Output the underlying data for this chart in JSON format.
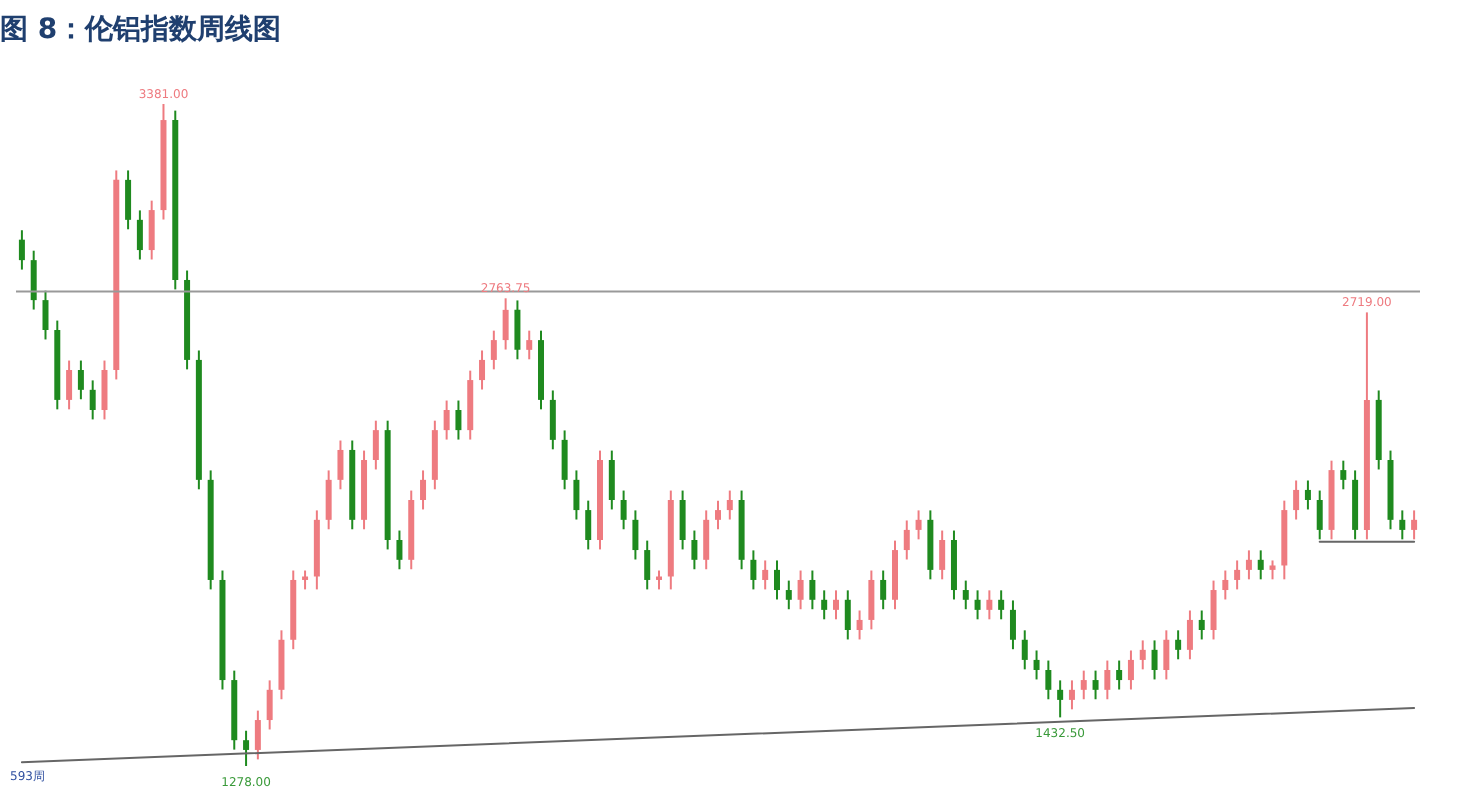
{
  "chart_data": {
    "type": "candlestick",
    "title": "图 8：伦铝指数周线图",
    "categories": [
      null,
      null,
      null,
      null,
      null,
      null,
      null,
      null,
      null,
      null,
      null,
      null,
      null,
      null,
      null,
      null,
      null,
      null,
      null,
      null,
      null,
      null,
      null,
      null,
      null,
      null,
      null,
      null,
      null,
      null,
      null,
      null,
      null,
      null,
      null,
      null,
      null,
      null,
      null,
      null,
      null,
      null,
      null,
      null,
      null,
      null,
      null,
      null,
      null,
      null,
      null,
      null,
      null,
      null,
      null,
      null,
      null,
      null,
      null,
      null,
      null,
      null,
      null,
      null,
      null,
      null,
      null,
      null,
      null,
      null,
      null,
      null,
      null,
      null,
      null,
      null,
      null,
      null,
      null,
      null,
      null,
      null,
      null,
      null,
      null,
      null,
      null,
      null,
      null,
      null,
      null,
      null,
      null,
      null,
      null,
      null,
      null,
      null,
      null,
      null,
      null,
      null,
      null,
      null,
      null,
      null,
      null,
      null,
      null,
      null,
      null,
      null,
      null,
      null,
      null,
      null,
      null,
      null,
      null
    ],
    "ohlc": [
      [
        2950,
        2980,
        2855,
        2885
      ],
      [
        2885,
        2915,
        2728,
        2758
      ],
      [
        2758,
        2788,
        2633,
        2663
      ],
      [
        2663,
        2693,
        2411,
        2441
      ],
      [
        2441,
        2566,
        2411,
        2536
      ],
      [
        2536,
        2566,
        2443,
        2473
      ],
      [
        2473,
        2503,
        2379,
        2409
      ],
      [
        2409,
        2566,
        2379,
        2536
      ],
      [
        2536,
        3170,
        2506,
        3140
      ],
      [
        3140,
        3170,
        2983,
        3013
      ],
      [
        3013,
        3043,
        2887,
        2917
      ],
      [
        2917,
        3074,
        2887,
        3044
      ],
      [
        3044,
        3381,
        3014,
        3330
      ],
      [
        3330,
        3360,
        2792,
        2822
      ],
      [
        2822,
        2852,
        2538,
        2568
      ],
      [
        2568,
        2598,
        2157,
        2187
      ],
      [
        2187,
        2217,
        1839,
        1869
      ],
      [
        1869,
        1899,
        1521,
        1551
      ],
      [
        1551,
        1581,
        1330,
        1360
      ],
      [
        1360,
        1390,
        1278,
        1329
      ],
      [
        1329,
        1454,
        1299,
        1424
      ],
      [
        1424,
        1550,
        1394,
        1520
      ],
      [
        1520,
        1709,
        1490,
        1679
      ],
      [
        1679,
        1899,
        1649,
        1869
      ],
      [
        1869,
        1899,
        1839,
        1880
      ],
      [
        1880,
        2090,
        1839,
        2060
      ],
      [
        2060,
        2217,
        2030,
        2187
      ],
      [
        2187,
        2312,
        2157,
        2282
      ],
      [
        2282,
        2312,
        2030,
        2060
      ],
      [
        2060,
        2280,
        2030,
        2250
      ],
      [
        2250,
        2375,
        2220,
        2345
      ],
      [
        2345,
        2375,
        1966,
        1996
      ],
      [
        1996,
        2026,
        1903,
        1933
      ],
      [
        1933,
        2153,
        1903,
        2123
      ],
      [
        2123,
        2217,
        2093,
        2187
      ],
      [
        2187,
        2375,
        2157,
        2345
      ],
      [
        2345,
        2439,
        2315,
        2409
      ],
      [
        2409,
        2439,
        2315,
        2345
      ],
      [
        2345,
        2534,
        2315,
        2504
      ],
      [
        2504,
        2598,
        2474,
        2568
      ],
      [
        2568,
        2661,
        2538,
        2631
      ],
      [
        2631,
        2763.75,
        2601,
        2727
      ],
      [
        2727,
        2757,
        2570,
        2600
      ],
      [
        2600,
        2661,
        2570,
        2631
      ],
      [
        2631,
        2661,
        2411,
        2441
      ],
      [
        2441,
        2471,
        2284,
        2314
      ],
      [
        2314,
        2344,
        2157,
        2187
      ],
      [
        2187,
        2217,
        2061,
        2091
      ],
      [
        2091,
        2121,
        1966,
        1996
      ],
      [
        1996,
        2280,
        1966,
        2250
      ],
      [
        2250,
        2280,
        2093,
        2123
      ],
      [
        2123,
        2153,
        2030,
        2060
      ],
      [
        2060,
        2090,
        1934,
        1964
      ],
      [
        1964,
        1994,
        1839,
        1869
      ],
      [
        1869,
        1899,
        1839,
        1880
      ],
      [
        1880,
        2153,
        1839,
        2123
      ],
      [
        2123,
        2153,
        1966,
        1996
      ],
      [
        1996,
        2026,
        1903,
        1933
      ],
      [
        1933,
        2090,
        1903,
        2060
      ],
      [
        2060,
        2121,
        2030,
        2091
      ],
      [
        2091,
        2153,
        2061,
        2123
      ],
      [
        2123,
        2153,
        1903,
        1933
      ],
      [
        1933,
        1963,
        1839,
        1869
      ],
      [
        1869,
        1931,
        1839,
        1901
      ],
      [
        1901,
        1931,
        1807,
        1837
      ],
      [
        1837,
        1867,
        1776,
        1806
      ],
      [
        1806,
        1899,
        1776,
        1869
      ],
      [
        1869,
        1899,
        1776,
        1806
      ],
      [
        1806,
        1836,
        1744,
        1774
      ],
      [
        1774,
        1836,
        1744,
        1806
      ],
      [
        1806,
        1836,
        1680,
        1710
      ],
      [
        1710,
        1772,
        1680,
        1742
      ],
      [
        1742,
        1899,
        1712,
        1869
      ],
      [
        1869,
        1899,
        1776,
        1806
      ],
      [
        1806,
        1994,
        1776,
        1964
      ],
      [
        1964,
        2058,
        1934,
        2028
      ],
      [
        2028,
        2090,
        1998,
        2060
      ],
      [
        2060,
        2090,
        1871,
        1901
      ],
      [
        1901,
        2026,
        1871,
        1996
      ],
      [
        1996,
        2026,
        1807,
        1837
      ],
      [
        1837,
        1867,
        1776,
        1806
      ],
      [
        1806,
        1836,
        1744,
        1774
      ],
      [
        1774,
        1836,
        1744,
        1806
      ],
      [
        1806,
        1836,
        1744,
        1774
      ],
      [
        1774,
        1804,
        1649,
        1679
      ],
      [
        1679,
        1709,
        1585,
        1615
      ],
      [
        1615,
        1645,
        1553,
        1583
      ],
      [
        1583,
        1613,
        1490,
        1520
      ],
      [
        1520,
        1550,
        1432.5,
        1488
      ],
      [
        1488,
        1550,
        1458,
        1520
      ],
      [
        1520,
        1581,
        1490,
        1551
      ],
      [
        1551,
        1581,
        1490,
        1520
      ],
      [
        1520,
        1613,
        1490,
        1583
      ],
      [
        1583,
        1613,
        1521,
        1551
      ],
      [
        1551,
        1645,
        1521,
        1615
      ],
      [
        1615,
        1677,
        1585,
        1647
      ],
      [
        1647,
        1677,
        1553,
        1583
      ],
      [
        1583,
        1709,
        1553,
        1679
      ],
      [
        1679,
        1709,
        1617,
        1647
      ],
      [
        1647,
        1772,
        1617,
        1742
      ],
      [
        1742,
        1772,
        1680,
        1710
      ],
      [
        1710,
        1867,
        1680,
        1837
      ],
      [
        1837,
        1899,
        1807,
        1869
      ],
      [
        1869,
        1931,
        1839,
        1901
      ],
      [
        1901,
        1963,
        1871,
        1933
      ],
      [
        1933,
        1963,
        1871,
        1901
      ],
      [
        1901,
        1931,
        1871,
        1915
      ],
      [
        1915,
        2121,
        1871,
        2091
      ],
      [
        2091,
        2185,
        2061,
        2155
      ],
      [
        2155,
        2185,
        2093,
        2123
      ],
      [
        2123,
        2153,
        1998,
        2028
      ],
      [
        2028,
        2248,
        1998,
        2218
      ],
      [
        2218,
        2248,
        2157,
        2187
      ],
      [
        2187,
        2217,
        1998,
        2028
      ],
      [
        2028,
        2719,
        1998,
        2441
      ],
      [
        2441,
        2471,
        2220,
        2250
      ],
      [
        2250,
        2280,
        2030,
        2060
      ],
      [
        2060,
        2090,
        1998,
        2028
      ],
      [
        2028,
        2090,
        1998,
        2060
      ]
    ],
    "series": [
      {
        "type": "line",
        "color": "#666666",
        "values": [
          1290,
          null,
          null,
          null,
          null,
          null,
          null,
          null,
          null,
          null,
          null,
          null,
          null,
          null,
          null,
          null,
          null,
          null,
          null,
          null,
          null,
          null,
          null,
          null,
          null,
          null,
          null,
          null,
          null,
          null,
          null,
          null,
          null,
          null,
          null,
          null,
          null,
          null,
          null,
          null,
          null,
          null,
          null,
          null,
          null,
          null,
          null,
          null,
          null,
          null,
          null,
          null,
          null,
          null,
          null,
          null,
          null,
          null,
          null,
          null,
          null,
          null,
          null,
          null,
          null,
          null,
          null,
          null,
          null,
          null,
          null,
          null,
          null,
          null,
          null,
          null,
          null,
          null,
          null,
          null,
          null,
          null,
          null,
          null,
          null,
          null,
          null,
          null,
          null,
          null,
          null,
          null,
          null,
          null,
          null,
          null,
          null,
          null,
          null,
          null,
          null,
          null,
          null,
          null,
          null,
          null,
          null,
          null,
          null,
          null,
          null,
          null,
          null,
          null,
          null,
          null,
          null,
          null,
          1462
        ]
      },
      {
        "type": "line",
        "color": "#666666",
        "values": [
          null,
          null,
          null,
          null,
          null,
          null,
          null,
          null,
          null,
          null,
          null,
          null,
          null,
          null,
          null,
          null,
          null,
          null,
          null,
          null,
          null,
          null,
          null,
          null,
          null,
          null,
          null,
          null,
          null,
          null,
          null,
          null,
          null,
          null,
          null,
          null,
          null,
          null,
          null,
          null,
          null,
          null,
          null,
          null,
          null,
          null,
          null,
          null,
          null,
          null,
          null,
          null,
          null,
          null,
          null,
          null,
          null,
          null,
          null,
          null,
          null,
          null,
          null,
          null,
          null,
          null,
          null,
          null,
          null,
          null,
          null,
          null,
          null,
          null,
          null,
          null,
          null,
          null,
          null,
          null,
          null,
          null,
          null,
          null,
          null,
          null,
          null,
          null,
          null,
          null,
          null,
          null,
          null,
          null,
          null,
          null,
          null,
          null,
          null,
          null,
          null,
          null,
          null,
          null,
          null,
          null,
          null,
          null,
          null,
          null,
          1990,
          null,
          null,
          null,
          null,
          null,
          null,
          null,
          1990
        ]
      }
    ],
    "ref_lines": [
      {
        "axis": "y",
        "value": 2785,
        "color": "#999999"
      }
    ],
    "annotations": [
      {
        "text": "3381.00",
        "y": 3381
      },
      {
        "text": "2763.75",
        "y": 2763.75
      },
      {
        "text": "2719.00",
        "y": 2719
      },
      {
        "text": "1278.00",
        "y": 1278
      },
      {
        "text": "1432.50",
        "y": 1432.5
      },
      "593周"
    ],
    "tick_labels": false
  }
}
